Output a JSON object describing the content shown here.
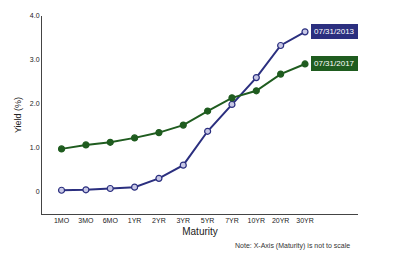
{
  "chart_data": {
    "type": "line",
    "x_label": "Maturity",
    "y_label": "Yield (%)",
    "annotations": [
      "Note: X-Axis (Maturity) is not to scale"
    ],
    "categories": [
      "1MO",
      "3MO",
      "6MO",
      "1YR",
      "2YR",
      "3YR",
      "5YR",
      "7YR",
      "10YR",
      "20YR",
      "30YR"
    ],
    "series": [
      {
        "name": "07/31/2013",
        "color": "#2b2f7f",
        "marker": "circle",
        "line_style": "solid",
        "values": [
          0.04,
          0.05,
          0.08,
          0.11,
          0.31,
          0.61,
          1.38,
          1.99,
          2.6,
          3.33,
          3.64
        ]
      },
      {
        "name": "07/31/2017",
        "color": "#1f5c1f",
        "marker": "circle",
        "line_style": "solid",
        "values": [
          0.98,
          1.07,
          1.13,
          1.23,
          1.35,
          1.52,
          1.84,
          2.14,
          2.3,
          2.68,
          2.91
        ]
      }
    ],
    "ylim": [
      -0.5,
      4.0
    ],
    "yticks": [
      0,
      {
        "value": 1,
        "label": "1.0"
      },
      {
        "value": 2,
        "label": "2.0"
      },
      {
        "value": 3,
        "label": "3.0"
      },
      {
        "value": 4,
        "label": "4.0"
      }
    ],
    "grid": false
  }
}
